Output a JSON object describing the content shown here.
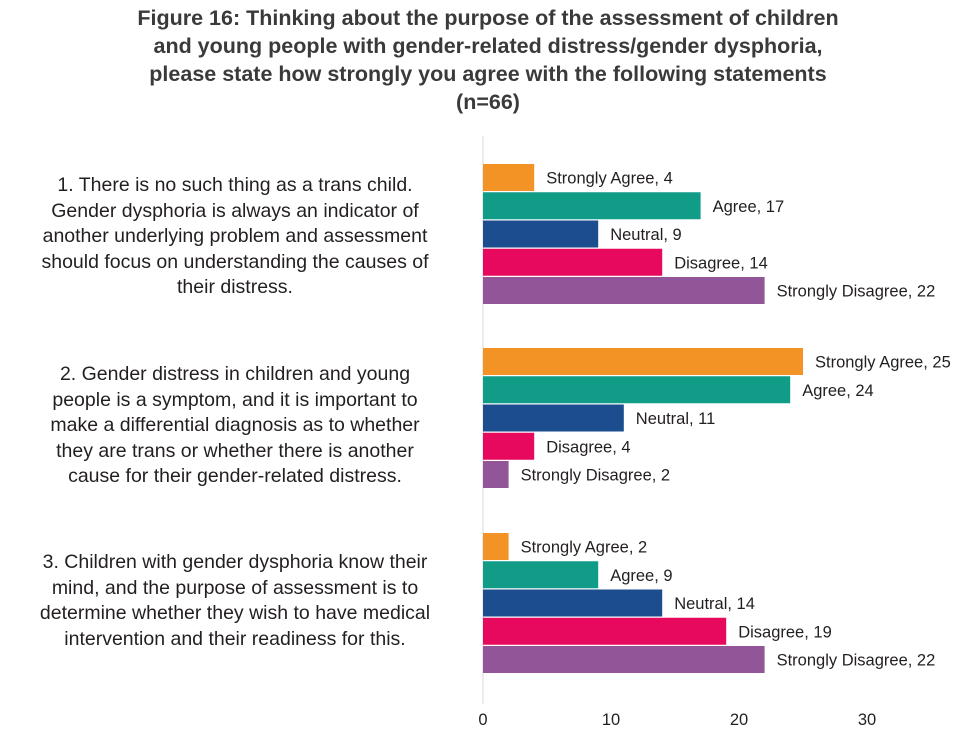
{
  "title_lines": [
    "Figure 16: Thinking about the purpose of the assessment of children",
    "and young people with gender-related distress/gender dysphoria,",
    "please state  how strongly you agree with the following statements",
    "(n=66)"
  ],
  "colors": {
    "Strongly Agree": "#F39325",
    "Agree": "#119C88",
    "Neutral": "#1B4D8F",
    "Disagree": "#E6095E",
    "Strongly Disagree": "#925698",
    "axis": "#d9d9d9",
    "text": "#231f20"
  },
  "chart_data": {
    "type": "bar",
    "orientation": "horizontal",
    "title": "Figure 16: Thinking about the purpose of the assessment of children and young people with gender-related distress/gender dysphoria, please state  how strongly you agree with the following statements (n=66)",
    "categories": [
      [
        "1. There is no such thing as a trans child.",
        "Gender dysphoria is always an indicator of",
        "another underlying problem and assessment",
        "should focus on understanding the causes of",
        "their distress."
      ],
      [
        "2. Gender distress in children and young",
        "people is a symptom, and it is important to",
        "make a differential diagnosis as to whether",
        "they are trans or whether there is another",
        "cause for their gender-related distress."
      ],
      [
        "3. Children with gender dysphoria know their",
        "mind, and the purpose of assessment is to",
        "determine whether they wish to have medical",
        "intervention and their readiness for this."
      ]
    ],
    "series": [
      {
        "name": "Strongly Agree",
        "values": [
          4,
          25,
          2
        ]
      },
      {
        "name": "Agree",
        "values": [
          17,
          24,
          9
        ]
      },
      {
        "name": "Neutral",
        "values": [
          9,
          11,
          14
        ]
      },
      {
        "name": "Disagree",
        "values": [
          14,
          4,
          19
        ]
      },
      {
        "name": "Strongly Disagree",
        "values": [
          22,
          2,
          22
        ]
      }
    ],
    "data_label_format": "{series}, {value}",
    "xlim": [
      0,
      30
    ],
    "xticks": [
      0,
      10,
      20,
      30
    ],
    "grid": false,
    "legend": "none"
  }
}
